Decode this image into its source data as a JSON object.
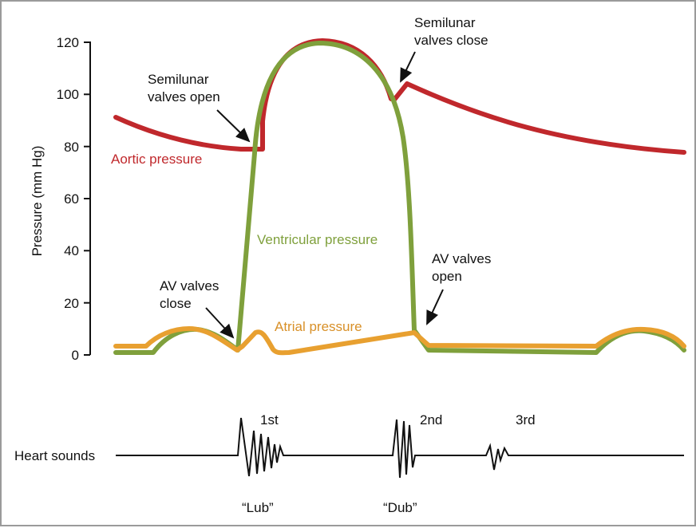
{
  "y_axis": {
    "label": "Pressure (mm Hg)",
    "ticks": [
      "0",
      "20",
      "40",
      "60",
      "80",
      "100",
      "120"
    ]
  },
  "curves": {
    "aortic": {
      "label": "Aortic pressure",
      "color": "#c0282c"
    },
    "ventricular": {
      "label": "Ventricular pressure",
      "color": "#7fa03c"
    },
    "atrial": {
      "label": "Atrial pressure",
      "color": "#e8a030"
    }
  },
  "annotations": {
    "semilunar_open": [
      "Semilunar",
      "valves open"
    ],
    "semilunar_close": [
      "Semilunar",
      "valves close"
    ],
    "av_close": [
      "AV valves",
      "close"
    ],
    "av_open": [
      "AV valves",
      "open"
    ]
  },
  "heart_sounds": {
    "label": "Heart sounds",
    "first": "1st",
    "second": "2nd",
    "third": "3rd",
    "lub": "“Lub”",
    "dub": "“Dub”"
  }
}
